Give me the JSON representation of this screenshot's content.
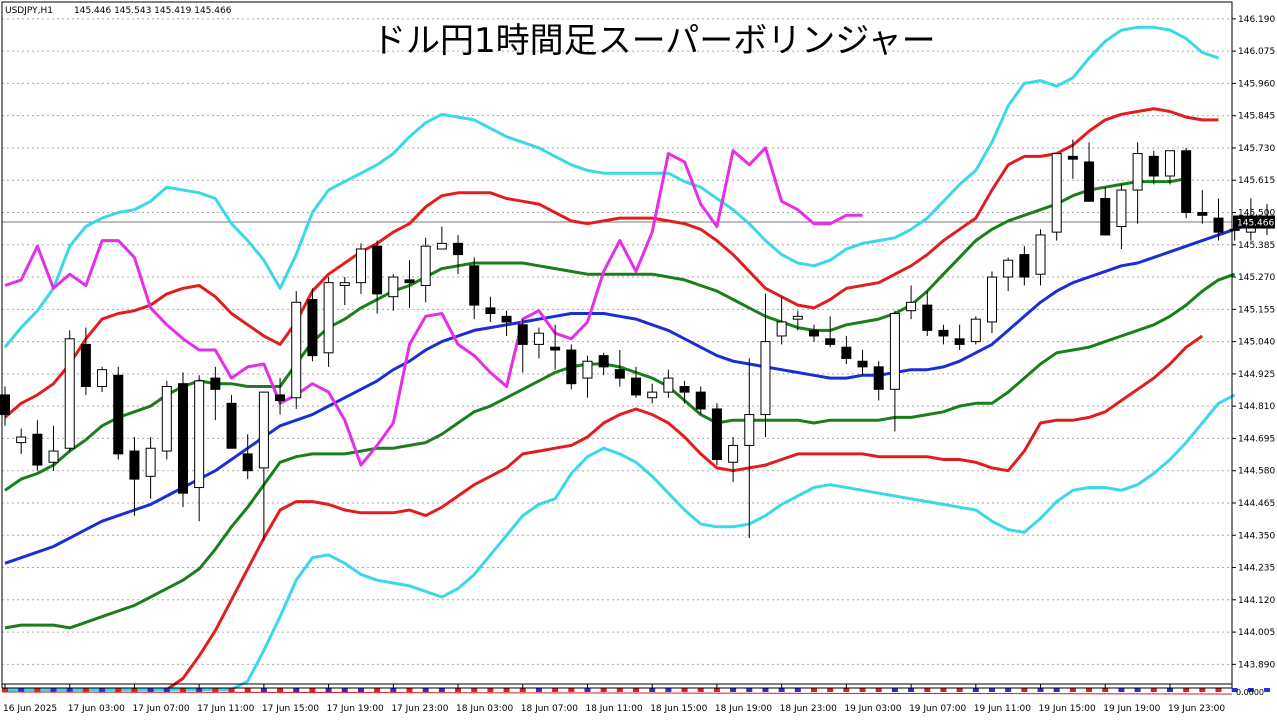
{
  "header": {
    "symbol": "USDJPY,H1",
    "ohlc": "145.446 145.543 145.419 145.466"
  },
  "current_price_label": "145.466",
  "indicator_label": "",
  "indicator_scale_label": "0.0000",
  "chart_data": {
    "type": "candlestick",
    "title": "ドル円1時間足スーパーボリンジャー",
    "ylim": [
      143.82,
      146.25
    ],
    "y_ticks": [
      "146.190",
      "146.075",
      "145.960",
      "145.845",
      "145.730",
      "145.615",
      "145.500",
      "145.385",
      "145.270",
      "145.155",
      "145.040",
      "144.925",
      "144.810",
      "144.695",
      "144.580",
      "144.465",
      "144.350",
      "144.235",
      "144.120",
      "144.005",
      "143.890"
    ],
    "x_ticks": [
      {
        "i": 0,
        "label": "16 Jun 2025"
      },
      {
        "i": 4,
        "label": "17 Jun 03:00"
      },
      {
        "i": 8,
        "label": "17 Jun 07:00"
      },
      {
        "i": 12,
        "label": "17 Jun 11:00"
      },
      {
        "i": 16,
        "label": "17 Jun 15:00"
      },
      {
        "i": 20,
        "label": "17 Jun 19:00"
      },
      {
        "i": 24,
        "label": "17 Jun 23:00"
      },
      {
        "i": 28,
        "label": "18 Jun 03:00"
      },
      {
        "i": 32,
        "label": "18 Jun 07:00"
      },
      {
        "i": 36,
        "label": "18 Jun 11:00"
      },
      {
        "i": 40,
        "label": "18 Jun 15:00"
      },
      {
        "i": 44,
        "label": "18 Jun 19:00"
      },
      {
        "i": 48,
        "label": "18 Jun 23:00"
      },
      {
        "i": 52,
        "label": "19 Jun 03:00"
      },
      {
        "i": 56,
        "label": "19 Jun 07:00"
      },
      {
        "i": 60,
        "label": "19 Jun 11:00"
      },
      {
        "i": 64,
        "label": "19 Jun 15:00"
      },
      {
        "i": 68,
        "label": "19 Jun 19:00"
      },
      {
        "i": 72,
        "label": "19 Jun 23:00"
      }
    ],
    "current_price": 145.466,
    "candles": [
      [
        144.85,
        144.88,
        144.74,
        144.78
      ],
      [
        144.68,
        144.73,
        144.64,
        144.7
      ],
      [
        144.71,
        144.76,
        144.58,
        144.6
      ],
      [
        144.61,
        144.74,
        144.58,
        144.65
      ],
      [
        144.66,
        145.08,
        144.65,
        145.05
      ],
      [
        145.03,
        145.09,
        144.85,
        144.88
      ],
      [
        144.88,
        144.95,
        144.86,
        144.94
      ],
      [
        144.92,
        144.95,
        144.62,
        144.64
      ],
      [
        144.65,
        144.7,
        144.42,
        144.55
      ],
      [
        144.56,
        144.7,
        144.48,
        144.66
      ],
      [
        144.65,
        144.9,
        144.62,
        144.88
      ],
      [
        144.89,
        144.93,
        144.45,
        144.5
      ],
      [
        144.52,
        144.92,
        144.4,
        144.9
      ],
      [
        144.91,
        144.95,
        144.76,
        144.87
      ],
      [
        144.82,
        144.85,
        144.66,
        144.66
      ],
      [
        144.64,
        144.71,
        144.55,
        144.58
      ],
      [
        144.59,
        144.86,
        144.33,
        144.86
      ],
      [
        144.85,
        144.91,
        144.78,
        144.83
      ],
      [
        144.84,
        145.22,
        144.8,
        145.18
      ],
      [
        145.19,
        145.23,
        144.97,
        144.99
      ],
      [
        145.0,
        145.27,
        144.95,
        145.25
      ],
      [
        145.24,
        145.27,
        145.17,
        145.25
      ],
      [
        145.25,
        145.39,
        145.21,
        145.37
      ],
      [
        145.38,
        145.4,
        145.14,
        145.21
      ],
      [
        145.2,
        145.28,
        145.15,
        145.27
      ],
      [
        145.26,
        145.33,
        145.16,
        145.25
      ],
      [
        145.24,
        145.41,
        145.18,
        145.38
      ],
      [
        145.37,
        145.45,
        145.37,
        145.39
      ],
      [
        145.39,
        145.42,
        145.28,
        145.35
      ],
      [
        145.31,
        145.34,
        145.12,
        145.17
      ],
      [
        145.16,
        145.2,
        145.11,
        145.14
      ],
      [
        145.13,
        145.15,
        145.06,
        145.11
      ],
      [
        145.1,
        145.12,
        144.93,
        145.03
      ],
      [
        145.03,
        145.09,
        144.98,
        145.07
      ],
      [
        145.02,
        145.1,
        144.94,
        145.01
      ],
      [
        145.01,
        145.03,
        144.87,
        144.89
      ],
      [
        144.91,
        144.99,
        144.84,
        144.97
      ],
      [
        144.99,
        145.0,
        144.92,
        144.95
      ],
      [
        144.94,
        145.01,
        144.88,
        144.91
      ],
      [
        144.91,
        144.95,
        144.84,
        144.85
      ],
      [
        144.84,
        144.89,
        144.82,
        144.86
      ],
      [
        144.86,
        144.94,
        144.84,
        144.91
      ],
      [
        144.88,
        144.9,
        144.82,
        144.86
      ],
      [
        144.86,
        144.88,
        144.78,
        144.8
      ],
      [
        144.8,
        144.82,
        144.6,
        144.62
      ],
      [
        144.61,
        144.7,
        144.54,
        144.67
      ],
      [
        144.67,
        144.98,
        144.34,
        144.78
      ],
      [
        144.78,
        145.21,
        144.7,
        145.04
      ],
      [
        145.06,
        145.2,
        145.03,
        145.11
      ],
      [
        145.12,
        145.15,
        145.08,
        145.13
      ],
      [
        145.08,
        145.1,
        145.04,
        145.06
      ],
      [
        145.05,
        145.13,
        145.02,
        145.03
      ],
      [
        145.02,
        145.06,
        144.96,
        144.98
      ],
      [
        144.97,
        145.01,
        144.92,
        144.95
      ],
      [
        144.95,
        144.97,
        144.83,
        144.87
      ],
      [
        144.87,
        145.15,
        144.72,
        145.14
      ],
      [
        145.15,
        145.24,
        145.12,
        145.18
      ],
      [
        145.17,
        145.22,
        145.06,
        145.08
      ],
      [
        145.08,
        145.1,
        145.03,
        145.06
      ],
      [
        145.05,
        145.1,
        145.01,
        145.03
      ],
      [
        145.04,
        145.13,
        145.03,
        145.12
      ],
      [
        145.11,
        145.29,
        145.07,
        145.27
      ],
      [
        145.27,
        145.34,
        145.22,
        145.33
      ],
      [
        145.35,
        145.38,
        145.24,
        145.27
      ],
      [
        145.28,
        145.44,
        145.24,
        145.42
      ],
      [
        145.43,
        145.71,
        145.4,
        145.71
      ],
      [
        145.7,
        145.76,
        145.62,
        145.69
      ],
      [
        145.68,
        145.75,
        145.54,
        145.54
      ],
      [
        145.55,
        145.59,
        145.42,
        145.42
      ],
      [
        145.45,
        145.6,
        145.37,
        145.58
      ],
      [
        145.58,
        145.75,
        145.46,
        145.71
      ],
      [
        145.7,
        145.72,
        145.6,
        145.63
      ],
      [
        145.63,
        145.72,
        145.6,
        145.72
      ],
      [
        145.72,
        145.73,
        145.48,
        145.5
      ],
      [
        145.5,
        145.58,
        145.46,
        145.49
      ],
      [
        145.48,
        145.55,
        145.4,
        145.43
      ],
      [
        145.44,
        145.46,
        145.4,
        145.44
      ],
      [
        145.43,
        145.55,
        145.4,
        145.46
      ],
      [
        145.45,
        145.53,
        145.42,
        145.47
      ]
    ],
    "series": [
      {
        "color": "#3ad8e8",
        "values": [
          145.02,
          145.09,
          145.15,
          145.23,
          145.38,
          145.45,
          145.48,
          145.5,
          145.51,
          145.54,
          145.59,
          145.58,
          145.57,
          145.55,
          145.46,
          145.4,
          145.33,
          145.23,
          145.35,
          145.5,
          145.58,
          145.61,
          145.64,
          145.67,
          145.71,
          145.77,
          145.82,
          145.85,
          145.84,
          145.83,
          145.8,
          145.77,
          145.75,
          145.73,
          145.7,
          145.67,
          145.65,
          145.64,
          145.64,
          145.64,
          145.64,
          145.64,
          145.61,
          145.59,
          145.55,
          145.51,
          145.46,
          145.4,
          145.35,
          145.32,
          145.31,
          145.33,
          145.37,
          145.39,
          145.4,
          145.41,
          145.44,
          145.48,
          145.54,
          145.6,
          145.65,
          145.75,
          145.88,
          145.96,
          145.97,
          145.95,
          145.98,
          146.05,
          146.11,
          146.15,
          146.16,
          146.16,
          146.15,
          146.12,
          146.07,
          146.05
        ]
      },
      {
        "color": "#e21d1d",
        "values": [
          144.77,
          144.82,
          144.85,
          144.89,
          144.96,
          145.05,
          145.12,
          145.14,
          145.15,
          145.17,
          145.21,
          145.23,
          145.24,
          145.2,
          145.14,
          145.1,
          145.06,
          145.03,
          145.11,
          145.22,
          145.28,
          145.32,
          145.36,
          145.39,
          145.43,
          145.46,
          145.52,
          145.56,
          145.57,
          145.57,
          145.57,
          145.55,
          145.54,
          145.53,
          145.5,
          145.47,
          145.46,
          145.47,
          145.48,
          145.48,
          145.48,
          145.47,
          145.46,
          145.44,
          145.4,
          145.35,
          145.29,
          145.23,
          145.2,
          145.17,
          145.16,
          145.19,
          145.23,
          145.24,
          145.25,
          145.28,
          145.31,
          145.35,
          145.4,
          145.44,
          145.48,
          145.58,
          145.67,
          145.7,
          145.7,
          145.71,
          145.74,
          145.79,
          145.83,
          145.85,
          145.86,
          145.87,
          145.86,
          145.84,
          145.83,
          145.83
        ]
      },
      {
        "color": "#1a7e1a",
        "values": [
          144.51,
          144.55,
          144.57,
          144.6,
          144.65,
          144.69,
          144.74,
          144.77,
          144.79,
          144.81,
          144.85,
          144.88,
          144.9,
          144.89,
          144.89,
          144.88,
          144.88,
          144.88,
          144.96,
          145.04,
          145.09,
          145.12,
          145.16,
          145.19,
          145.22,
          145.24,
          145.27,
          145.3,
          145.31,
          145.32,
          145.32,
          145.32,
          145.32,
          145.31,
          145.3,
          145.29,
          145.28,
          145.28,
          145.28,
          145.28,
          145.28,
          145.27,
          145.26,
          145.24,
          145.22,
          145.19,
          145.16,
          145.13,
          145.11,
          145.09,
          145.08,
          145.08,
          145.1,
          145.11,
          145.12,
          145.14,
          145.17,
          145.22,
          145.28,
          145.34,
          145.4,
          145.44,
          145.47,
          145.49,
          145.51,
          145.53,
          145.56,
          145.58,
          145.59,
          145.6,
          145.61,
          145.61,
          145.61,
          145.62
        ]
      },
      {
        "color": "#1a2ed4",
        "values": [
          144.25,
          144.27,
          144.29,
          144.31,
          144.34,
          144.37,
          144.4,
          144.42,
          144.44,
          144.46,
          144.49,
          144.52,
          144.55,
          144.58,
          144.62,
          144.66,
          144.7,
          144.74,
          144.76,
          144.78,
          144.81,
          144.84,
          144.87,
          144.9,
          144.94,
          144.97,
          145.01,
          145.04,
          145.06,
          145.08,
          145.09,
          145.1,
          145.11,
          145.12,
          145.13,
          145.14,
          145.14,
          145.14,
          145.13,
          145.12,
          145.1,
          145.08,
          145.05,
          145.02,
          144.99,
          144.97,
          144.96,
          144.95,
          144.94,
          144.93,
          144.92,
          144.91,
          144.91,
          144.92,
          144.92,
          144.93,
          144.94,
          144.94,
          144.95,
          144.97,
          145.0,
          145.03,
          145.08,
          145.13,
          145.18,
          145.22,
          145.25,
          145.27,
          145.29,
          145.31,
          145.32,
          145.34,
          145.36,
          145.38,
          145.4,
          145.42,
          145.44,
          145.46
        ]
      },
      {
        "color": "#1a7e1a",
        "values": [
          144.02,
          144.03,
          144.03,
          144.03,
          144.02,
          144.04,
          144.06,
          144.08,
          144.1,
          144.13,
          144.16,
          144.19,
          144.23,
          144.3,
          144.38,
          144.45,
          144.53,
          144.61,
          144.63,
          144.64,
          144.64,
          144.64,
          144.65,
          144.66,
          144.66,
          144.67,
          144.68,
          144.71,
          144.75,
          144.79,
          144.81,
          144.84,
          144.87,
          144.9,
          144.93,
          144.95,
          144.96,
          144.96,
          144.95,
          144.93,
          144.91,
          144.88,
          144.83,
          144.78,
          144.75,
          144.76,
          144.76,
          144.76,
          144.76,
          144.76,
          144.75,
          144.76,
          144.76,
          144.76,
          144.76,
          144.77,
          144.77,
          144.78,
          144.79,
          144.81,
          144.82,
          144.82,
          144.86,
          144.91,
          144.96,
          145.0,
          145.01,
          145.02,
          145.04,
          145.06,
          145.08,
          145.1,
          145.13,
          145.17,
          145.22,
          145.26,
          145.28
        ]
      },
      {
        "color": "#e21d1d",
        "values": [
          143.8,
          143.8,
          143.8,
          143.8,
          143.8,
          143.8,
          143.8,
          143.8,
          143.8,
          143.8,
          143.8,
          143.84,
          143.92,
          144.01,
          144.12,
          144.23,
          144.34,
          144.44,
          144.47,
          144.47,
          144.46,
          144.44,
          144.43,
          144.43,
          144.43,
          144.44,
          144.42,
          144.45,
          144.49,
          144.53,
          144.56,
          144.59,
          144.64,
          144.65,
          144.66,
          144.67,
          144.7,
          144.75,
          144.78,
          144.8,
          144.78,
          144.75,
          144.7,
          144.64,
          144.59,
          144.58,
          144.59,
          144.6,
          144.62,
          144.64,
          144.64,
          144.64,
          144.64,
          144.64,
          144.63,
          144.63,
          144.63,
          144.63,
          144.62,
          144.62,
          144.61,
          144.59,
          144.58,
          144.65,
          144.75,
          144.76,
          144.76,
          144.77,
          144.79,
          144.83,
          144.87,
          144.91,
          144.96,
          145.02,
          145.06
        ]
      },
      {
        "color": "#3ad8e8",
        "values": [
          143.8,
          143.8,
          143.8,
          143.8,
          143.8,
          143.8,
          143.8,
          143.8,
          143.8,
          143.8,
          143.8,
          143.8,
          143.8,
          143.8,
          143.8,
          143.83,
          143.94,
          144.06,
          144.19,
          144.27,
          144.28,
          144.25,
          144.21,
          144.19,
          144.18,
          144.17,
          144.15,
          144.13,
          144.16,
          144.21,
          144.28,
          144.35,
          144.42,
          144.46,
          144.48,
          144.57,
          144.63,
          144.66,
          144.64,
          144.61,
          144.56,
          144.5,
          144.44,
          144.39,
          144.38,
          144.38,
          144.39,
          144.42,
          144.46,
          144.49,
          144.52,
          144.53,
          144.52,
          144.51,
          144.5,
          144.49,
          144.48,
          144.47,
          144.46,
          144.45,
          144.44,
          144.4,
          144.37,
          144.36,
          144.41,
          144.47,
          144.51,
          144.52,
          144.52,
          144.51,
          144.53,
          144.57,
          144.62,
          144.68,
          144.75,
          144.82,
          144.85
        ]
      },
      {
        "color": "#e62ee6",
        "values": [
          145.24,
          145.26,
          145.38,
          145.23,
          145.28,
          145.24,
          145.4,
          145.4,
          145.34,
          145.16,
          145.1,
          145.05,
          145.01,
          145.01,
          144.91,
          144.95,
          144.96,
          144.82,
          144.85,
          144.89,
          144.86,
          144.76,
          144.6,
          144.67,
          144.75,
          145.03,
          145.13,
          145.14,
          145.03,
          144.99,
          144.93,
          144.88,
          145.12,
          145.15,
          145.07,
          145.05,
          145.11,
          145.29,
          145.4,
          145.29,
          145.43,
          145.71,
          145.68,
          145.53,
          145.45,
          145.72,
          145.67,
          145.73,
          145.54,
          145.51,
          145.46,
          145.46,
          145.49,
          145.49
        ]
      }
    ]
  }
}
